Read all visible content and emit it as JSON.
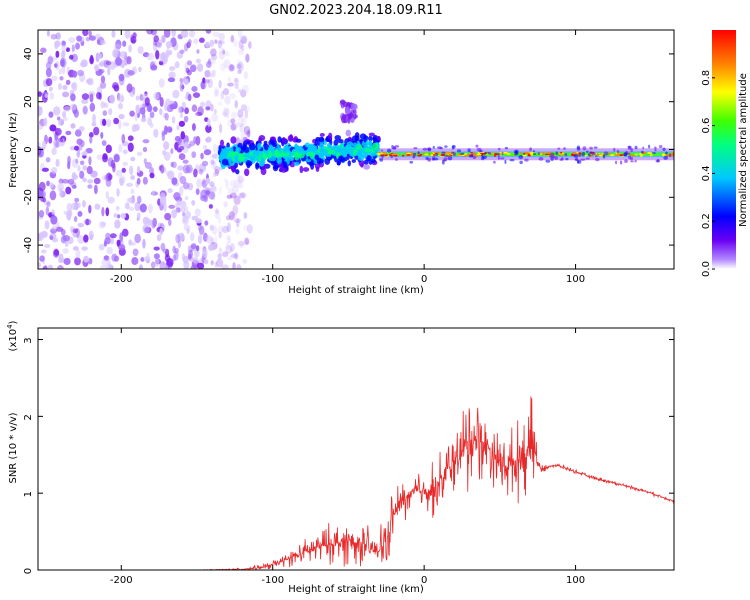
{
  "title": "GN02.2023.204.18.09.R11",
  "chart_data": [
    {
      "type": "heatmap",
      "xlabel": "Height of straight line (km)",
      "ylabel": "Frequency (Hz)",
      "xlim": [
        -255,
        165
      ],
      "ylim": [
        -50,
        50
      ],
      "xticks": [
        -200,
        -100,
        0,
        100
      ],
      "yticks": [
        -40,
        -20,
        0,
        20,
        40
      ],
      "colorbar": {
        "label": "Normalized spectral amplitude",
        "range": [
          0,
          1
        ],
        "ticks": [
          "0.0",
          "0.2",
          "0.4",
          "0.6",
          "0.8"
        ],
        "colors": [
          "#ffffff",
          "#b388ff",
          "#6a00f4",
          "#0000ff",
          "#00c8ff",
          "#00ff80",
          "#40ff00",
          "#ffff00",
          "#ff8000",
          "#ff0000"
        ]
      },
      "regions": [
        {
          "x_range": [
            -255,
            -125
          ],
          "freq_range": [
            -50,
            50
          ],
          "amplitude": "low (noise)"
        },
        {
          "x_range": [
            -135,
            -30
          ],
          "freq_range": [
            -10,
            6
          ],
          "amplitude": "medium"
        },
        {
          "x_range": [
            -55,
            -45
          ],
          "freq_range": [
            12,
            20
          ],
          "amplitude": "low"
        },
        {
          "x_range": [
            -30,
            165
          ],
          "freq_range": [
            -3,
            1
          ],
          "amplitude": "high (narrow band near -2 Hz)"
        }
      ]
    },
    {
      "type": "line",
      "xlabel": "Height of straight line (km)",
      "ylabel": "SNR (10 * v/v)",
      "y_multiplier": "(x10",
      "y_multiplier_exp": "4",
      "y_multiplier_close": ")",
      "xlim": [
        -255,
        165
      ],
      "ylim": [
        0,
        3.15
      ],
      "xticks": [
        -200,
        -100,
        0,
        100
      ],
      "yticks": [
        0,
        1,
        2,
        3
      ],
      "color": "#e8292a",
      "series": [
        {
          "x": [
            -255,
            -200,
            -150,
            -120,
            -105,
            -100,
            -90,
            -80,
            -70,
            -60,
            -50,
            -40,
            -35,
            -30,
            -25,
            -20,
            -15,
            -10,
            -5,
            0,
            5,
            10,
            15,
            20,
            25,
            28,
            30,
            32,
            35,
            40,
            45,
            50,
            55,
            60,
            65,
            70,
            72,
            74,
            76,
            78,
            80,
            82,
            85,
            90,
            100,
            110,
            120,
            130,
            140,
            150,
            160,
            165
          ],
          "y": [
            0.0,
            0.0,
            0.0,
            0.01,
            0.04,
            0.07,
            0.14,
            0.22,
            0.3,
            0.35,
            0.37,
            0.33,
            0.28,
            0.24,
            0.38,
            0.72,
            0.9,
            0.94,
            1.03,
            1.04,
            1.05,
            1.1,
            1.26,
            1.44,
            1.52,
            1.6,
            1.75,
            1.72,
            1.7,
            1.6,
            1.55,
            1.4,
            1.35,
            1.4,
            1.5,
            1.55,
            1.62,
            1.45,
            1.35,
            1.3,
            1.32,
            1.35,
            1.36,
            1.35,
            1.28,
            1.21,
            1.16,
            1.11,
            1.06,
            1.0,
            0.93,
            0.9
          ],
          "noise_amp": [
            0.0,
            0.0,
            0.0,
            0.02,
            0.06,
            0.07,
            0.12,
            0.2,
            0.28,
            0.35,
            0.4,
            0.38,
            0.25,
            0.4,
            0.5,
            0.4,
            0.35,
            0.35,
            0.4,
            0.4,
            0.45,
            0.5,
            0.55,
            0.6,
            0.6,
            0.9,
            1.3,
            0.9,
            0.7,
            0.6,
            0.5,
            0.55,
            0.55,
            0.6,
            0.65,
            0.7,
            0.9,
            0.5,
            0.15,
            0.08,
            0.05,
            0.05,
            0.04,
            0.04,
            0.03,
            0.03,
            0.03,
            0.03,
            0.03,
            0.03,
            0.03,
            0.03
          ]
        }
      ]
    }
  ]
}
